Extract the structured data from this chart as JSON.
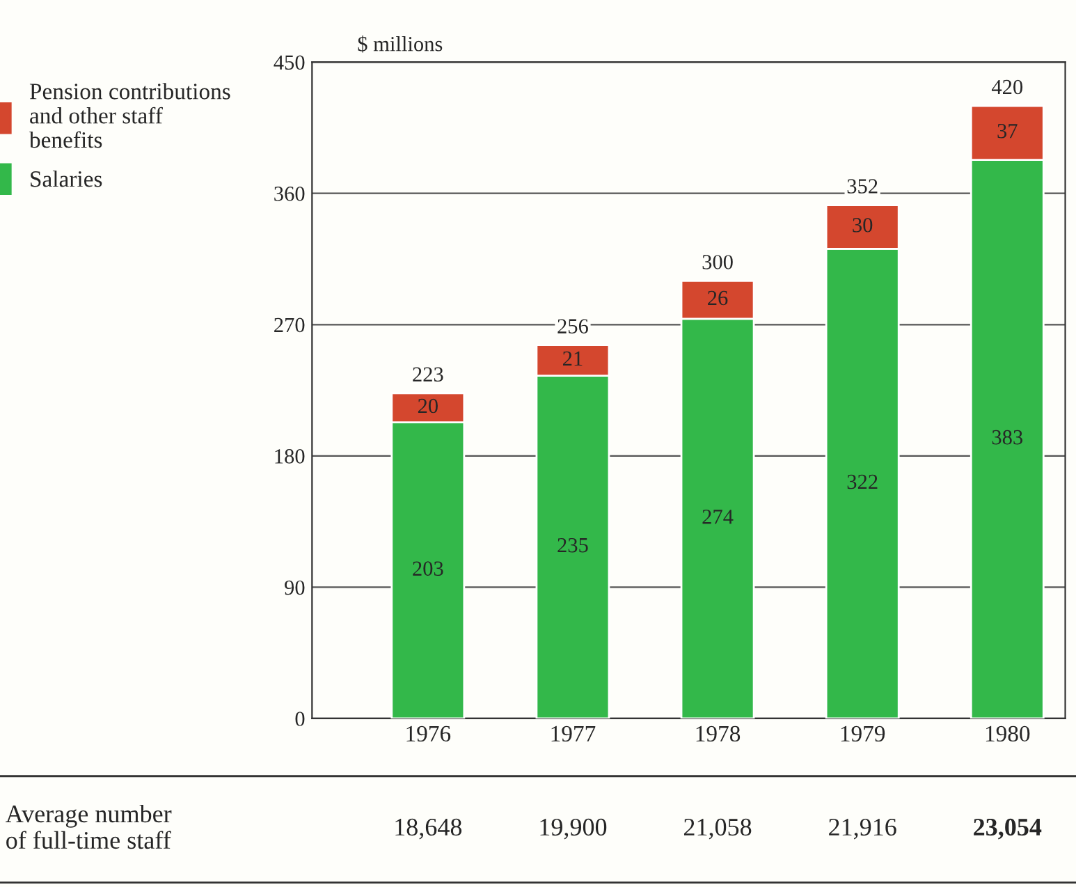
{
  "chart_data": {
    "type": "bar",
    "ylabel": "$ millions",
    "categories": [
      "1976",
      "1977",
      "1978",
      "1979",
      "1980"
    ],
    "stacked": true,
    "series": [
      {
        "name": "Salaries",
        "color": "#33b84a",
        "values": [
          203,
          235,
          274,
          322,
          383
        ]
      },
      {
        "name": "Pension contributions and other staff benefits",
        "color": "#d4472e",
        "values": [
          20,
          21,
          26,
          30,
          37
        ]
      }
    ],
    "totals": [
      "223",
      "256",
      "300",
      "352",
      "420"
    ],
    "data_labels": true,
    "ylim": [
      0,
      450
    ],
    "yticks": [
      0,
      90,
      180,
      270,
      360,
      450
    ],
    "grid": "y",
    "legend": "left",
    "annotations": [
      "Average number\nof full-time staff",
      "18,648",
      "19,900",
      "21,058",
      "21,916",
      "23,054"
    ]
  }
}
